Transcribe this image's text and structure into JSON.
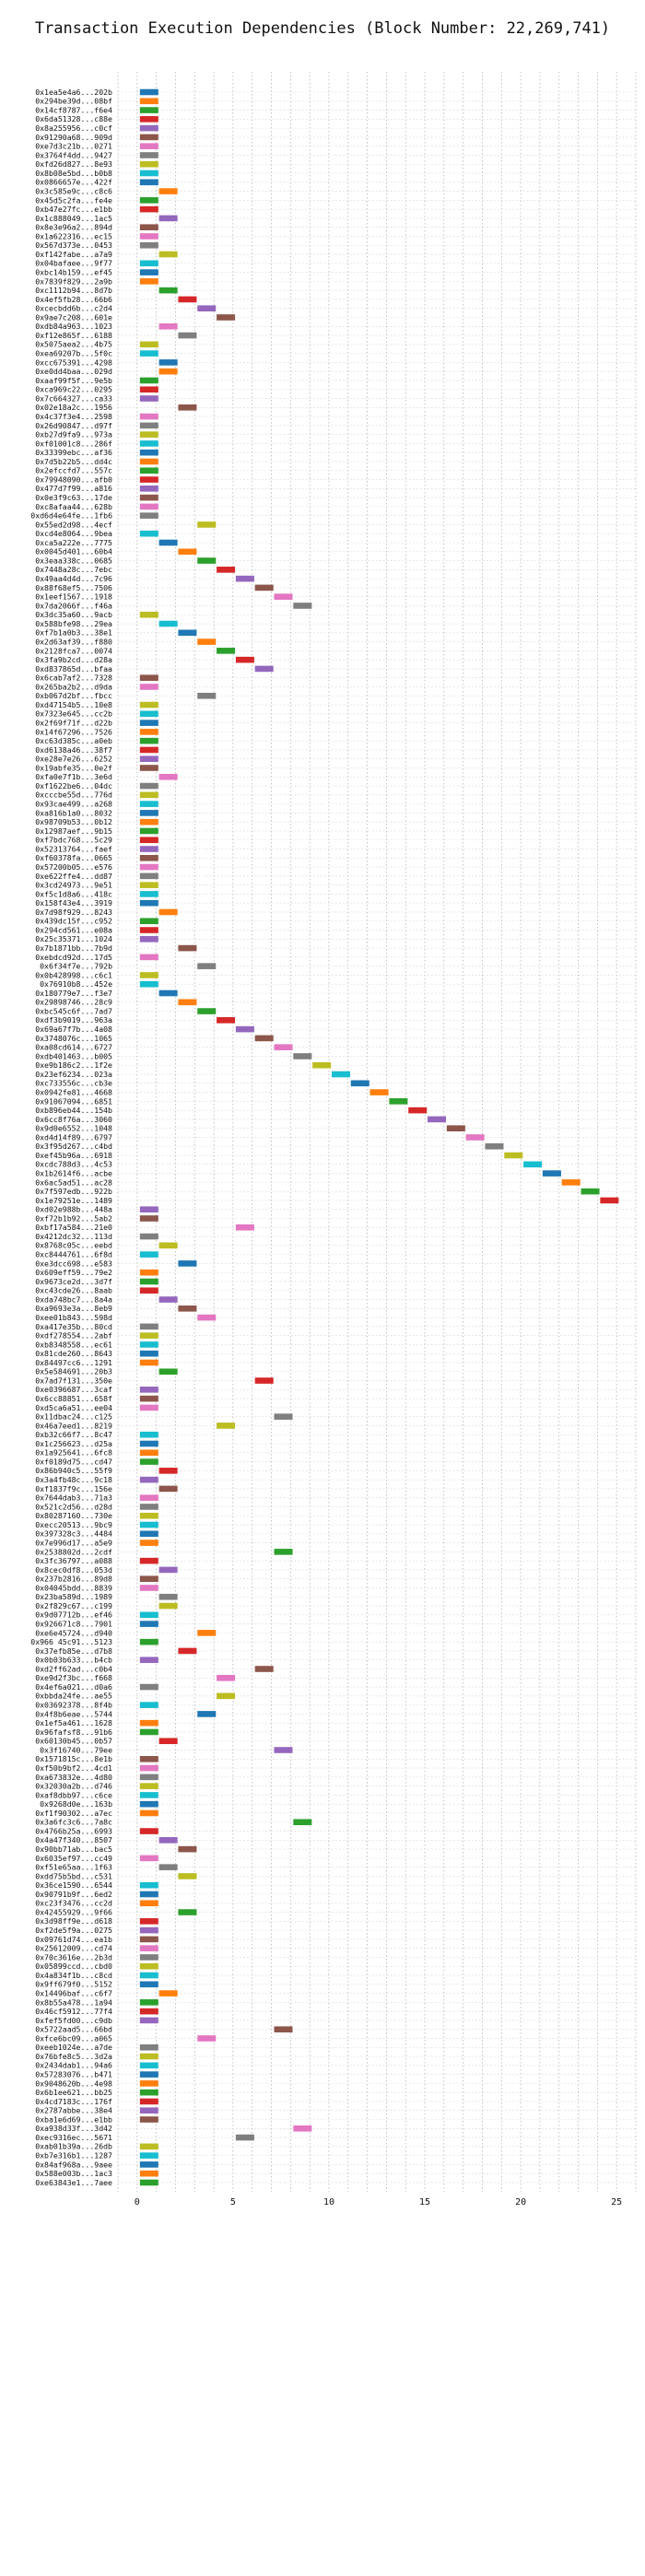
{
  "chart_data": {
    "type": "bar",
    "orientation": "horizontal-timeline",
    "title": "Transaction Execution Dependencies (Block Number: 22,269,741)",
    "xlabel": "",
    "ylabel": "",
    "xlim": [
      -1,
      26
    ],
    "xticks": [
      0,
      5,
      10,
      15,
      20,
      25
    ],
    "grid": true,
    "grid_style": "dotted",
    "palette": [
      "#1f77b4",
      "#ff7f0e",
      "#2ca02c",
      "#d62728",
      "#9467bd",
      "#8c564b",
      "#e377c2",
      "#7f7f7f",
      "#bcbd22",
      "#17becf"
    ],
    "transactions": [
      {
        "label": "0x1ea5e4a6...202b",
        "start": 0
      },
      {
        "label": "0x294be39d...08bf",
        "start": 0
      },
      {
        "label": "0x14cf8787...f6e4",
        "start": 0
      },
      {
        "label": "0x6da51328...c88e",
        "start": 0
      },
      {
        "label": "0x8a255956...c0cf",
        "start": 0
      },
      {
        "label": "0x91290a68...909d",
        "start": 0
      },
      {
        "label": "0xe7d3c21b...0271",
        "start": 0
      },
      {
        "label": "0x3764f4dd...9427",
        "start": 0
      },
      {
        "label": "0xfd26d827...8e93",
        "start": 0
      },
      {
        "label": "0x8b08e5bd...b0b8",
        "start": 0
      },
      {
        "label": "0x0866657e...422f",
        "start": 0
      },
      {
        "label": "0x3c585e9c...c8c6",
        "start": 1
      },
      {
        "label": "0x45d5c2fa...fe4e",
        "start": 0
      },
      {
        "label": "0xb47e27fc...e1bb",
        "start": 0
      },
      {
        "label": "0x1c888049...1ac5",
        "start": 1
      },
      {
        "label": "0x8e3e96a2...894d",
        "start": 0
      },
      {
        "label": "0x1a622316...ec15",
        "start": 0
      },
      {
        "label": "0x567d373e...0453",
        "start": 0
      },
      {
        "label": "0xf142fabe...a7a9",
        "start": 1
      },
      {
        "label": "0x04bafaee...9f77",
        "start": 0
      },
      {
        "label": "0xbc14b159...ef45",
        "start": 0
      },
      {
        "label": "0x7839f829...2a9b",
        "start": 0
      },
      {
        "label": "0xc1112b94...8d7b",
        "start": 1
      },
      {
        "label": "0x4ef5fb28...66b6",
        "start": 2
      },
      {
        "label": "0xcecbdd6b...c2d4",
        "start": 3
      },
      {
        "label": "0x9ae7c208...601e",
        "start": 4
      },
      {
        "label": "0xdb84a963...1023",
        "start": 1
      },
      {
        "label": "0xf12e865f...6188",
        "start": 2
      },
      {
        "label": "0x5075aea2...4b75",
        "start": 0
      },
      {
        "label": "0xea69207b...5f0c",
        "start": 0
      },
      {
        "label": "0xcc675391...4298",
        "start": 1
      },
      {
        "label": "0xe0dd4baa...029d",
        "start": 1
      },
      {
        "label": "0xaaf99f5f...9e5b",
        "start": 0
      },
      {
        "label": "0xca969c22...0295",
        "start": 0
      },
      {
        "label": "0x7c664327...ca33",
        "start": 0
      },
      {
        "label": "0x02e18a2c...1956",
        "start": 2
      },
      {
        "label": "0x4c37f3e4...2598",
        "start": 0
      },
      {
        "label": "0x26d90847...d97f",
        "start": 0
      },
      {
        "label": "0xb27d9fa9...973a",
        "start": 0
      },
      {
        "label": "0xf01001c8...286f",
        "start": 0
      },
      {
        "label": "0x33399ebc...af36",
        "start": 0
      },
      {
        "label": "0x7d5b22b5...dd4c",
        "start": 0
      },
      {
        "label": "0x2efccfd7...557c",
        "start": 0
      },
      {
        "label": "0x79948090...afb0",
        "start": 0
      },
      {
        "label": "0x477d7f99...a816",
        "start": 0
      },
      {
        "label": "0x0e3f9c63...17de",
        "start": 0
      },
      {
        "label": "0xc8afaa44...628b",
        "start": 0
      },
      {
        "label": "0xd6d4e64fe...1fb6",
        "start": 0
      },
      {
        "label": "0x55ed2d98...4ecf",
        "start": 3
      },
      {
        "label": "0xcd4e8064...9bea",
        "start": 0
      },
      {
        "label": "0xca5a222e...7775",
        "start": 1
      },
      {
        "label": "0x0045d401...60b4",
        "start": 2
      },
      {
        "label": "0x3eaa338c...0685",
        "start": 3
      },
      {
        "label": "0x7448a28c...7ebc",
        "start": 4
      },
      {
        "label": "0x49aa4d4d...7c96",
        "start": 5
      },
      {
        "label": "0x88f68ef5...7506",
        "start": 6
      },
      {
        "label": "0x1eef1567...1918",
        "start": 7
      },
      {
        "label": "0x7da2066f...f46a",
        "start": 8
      },
      {
        "label": "0x3dc35a60...9acb",
        "start": 0
      },
      {
        "label": "0x588bfe98...29ea",
        "start": 1
      },
      {
        "label": "0xf7b1a0b3...38e1",
        "start": 2
      },
      {
        "label": "0x2d63af39...f880",
        "start": 3
      },
      {
        "label": "0x2128fca7...0074",
        "start": 4
      },
      {
        "label": "0x3fa9b2cd...d28a",
        "start": 5
      },
      {
        "label": "0xd837865d...bfaa",
        "start": 6
      },
      {
        "label": "0x6cab7af2...7328",
        "start": 0
      },
      {
        "label": "0x265ba2b2...d9da",
        "start": 0
      },
      {
        "label": "0xb067d2bf...fbcc",
        "start": 3
      },
      {
        "label": "0xd47154b5...10e8",
        "start": 0
      },
      {
        "label": "0x7323e645...cc2b",
        "start": 0
      },
      {
        "label": "0x2f69f71f...d22b",
        "start": 0
      },
      {
        "label": "0x14f67296...7526",
        "start": 0
      },
      {
        "label": "0xc63d385c...a0eb",
        "start": 0
      },
      {
        "label": "0xd6138a46...38f7",
        "start": 0
      },
      {
        "label": "0xe28e7e26...6252",
        "start": 0
      },
      {
        "label": "0x19abfe35...0e2f",
        "start": 0
      },
      {
        "label": "0xfa0e7f1b...3e6d",
        "start": 1
      },
      {
        "label": "0xf1622be6...04dc",
        "start": 0
      },
      {
        "label": "0xcccbe55d...776d",
        "start": 0
      },
      {
        "label": "0x93cae499...a268",
        "start": 0
      },
      {
        "label": "0xa816b1a0...8032",
        "start": 0
      },
      {
        "label": "0x98709b53...0b12",
        "start": 0
      },
      {
        "label": "0x12987aef...9b15",
        "start": 0
      },
      {
        "label": "0xf7bdc768...5c29",
        "start": 0
      },
      {
        "label": "0x52313764...faef",
        "start": 0
      },
      {
        "label": "0xf60378fa...0665",
        "start": 0
      },
      {
        "label": "0x57200b05...e576",
        "start": 0
      },
      {
        "label": "0xe622ffe4...dd87",
        "start": 0
      },
      {
        "label": "0x3cd24973...9e51",
        "start": 0
      },
      {
        "label": "0xf5c1d8a6...418c",
        "start": 0
      },
      {
        "label": "0x158f43e4...3919",
        "start": 0
      },
      {
        "label": "0x7d98f929...8243",
        "start": 1
      },
      {
        "label": "0x439dc15f...c952",
        "start": 0
      },
      {
        "label": "0x294cd561...e08a",
        "start": 0
      },
      {
        "label": "0x25c35371...1024",
        "start": 0
      },
      {
        "label": "0x7b1871bb...7b9d",
        "start": 2
      },
      {
        "label": "0xebdcd92d...17d5",
        "start": 0
      },
      {
        "label": "0x6f34f7e...792b",
        "start": 3
      },
      {
        "label": "0x0b428998...c6c1",
        "start": 0
      },
      {
        "label": "0x76910b8...452e",
        "start": 0
      },
      {
        "label": "0x180779e7...f3e7",
        "start": 1
      },
      {
        "label": "0x29898746...28c9",
        "start": 2
      },
      {
        "label": "0xbc545c6f...7ad7",
        "start": 3
      },
      {
        "label": "0xdf3b9019...963a",
        "start": 4
      },
      {
        "label": "0x69a67f7b...4a08",
        "start": 5
      },
      {
        "label": "0x3748076c...1065",
        "start": 6
      },
      {
        "label": "0xa08cd614...6727",
        "start": 7
      },
      {
        "label": "0xdb401463...b005",
        "start": 8
      },
      {
        "label": "0xe9b186c2...1f2e",
        "start": 9
      },
      {
        "label": "0x23ef6234...023a",
        "start": 10
      },
      {
        "label": "0xc733556c...cb3e",
        "start": 11
      },
      {
        "label": "0x0942fe81...4668",
        "start": 12
      },
      {
        "label": "0x91067094...6851",
        "start": 13
      },
      {
        "label": "0xb896eb44...154b",
        "start": 14
      },
      {
        "label": "0x6cc8f76a...3060",
        "start": 15
      },
      {
        "label": "0x9d0e6552...1048",
        "start": 16
      },
      {
        "label": "0xd4d14f89...6797",
        "start": 17
      },
      {
        "label": "0x3f95d267...c4bd",
        "start": 18
      },
      {
        "label": "0xef45b96a...6918",
        "start": 19
      },
      {
        "label": "0xcdc788d3...4c53",
        "start": 20
      },
      {
        "label": "0x1b2614f6...acbe",
        "start": 21
      },
      {
        "label": "0x6ac5ad51...ac28",
        "start": 22
      },
      {
        "label": "0x7f597edb...922b",
        "start": 23
      },
      {
        "label": "0x1e79251e...1489",
        "start": 24
      },
      {
        "label": "0xd02e988b...448a",
        "start": 0
      },
      {
        "label": "0xf72b1b92...5ab2",
        "start": 0
      },
      {
        "label": "0xbf17a584...21e0",
        "start": 5
      },
      {
        "label": "0x4212dc32...113d",
        "start": 0
      },
      {
        "label": "0x8768c05c...eebd",
        "start": 1
      },
      {
        "label": "0xc8444761...6f8d",
        "start": 0
      },
      {
        "label": "0xe3dcc698...e583",
        "start": 2
      },
      {
        "label": "0x609eff59...79e2",
        "start": 0
      },
      {
        "label": "0x9673ce2d...3d7f",
        "start": 0
      },
      {
        "label": "0xc43cde26...8aab",
        "start": 0
      },
      {
        "label": "0xda748bc7...8a4a",
        "start": 1
      },
      {
        "label": "0xa9693e3a...8eb9",
        "start": 2
      },
      {
        "label": "0xee01b843...598d",
        "start": 3
      },
      {
        "label": "0xa417e35b...80cd",
        "start": 0
      },
      {
        "label": "0xdf278554...2abf",
        "start": 0
      },
      {
        "label": "0xb8348558...ec61",
        "start": 0
      },
      {
        "label": "0x81cde260...8643",
        "start": 0
      },
      {
        "label": "0x84497cc6...1291",
        "start": 0
      },
      {
        "label": "0x5e584691...20b3",
        "start": 1
      },
      {
        "label": "0x7ad7f131...350e",
        "start": 6
      },
      {
        "label": "0xe0396687...3caf",
        "start": 0
      },
      {
        "label": "0x6cc88851...658f",
        "start": 0
      },
      {
        "label": "0xd5ca6a51...ee04",
        "start": 0
      },
      {
        "label": "0x11dbac24...c125",
        "start": 7
      },
      {
        "label": "0x46a7eed1...8219",
        "start": 4
      },
      {
        "label": "0xb32c66f7...8c47",
        "start": 0
      },
      {
        "label": "0x1c256623...d25a",
        "start": 0
      },
      {
        "label": "0x1a925641...6fc8",
        "start": 0
      },
      {
        "label": "0xf0189d75...cd47",
        "start": 0
      },
      {
        "label": "0x86b940c5...55f9",
        "start": 1
      },
      {
        "label": "0x3a4fb48c...9c18",
        "start": 0
      },
      {
        "label": "0xf1837f9c...156e",
        "start": 1
      },
      {
        "label": "0x7644dab3...71a3",
        "start": 0
      },
      {
        "label": "0x521c2d56...d28d",
        "start": 0
      },
      {
        "label": "0x80287160...730e",
        "start": 0
      },
      {
        "label": "0xecc20513...9bc9",
        "start": 0
      },
      {
        "label": "0x397328c3...4484",
        "start": 0
      },
      {
        "label": "0x7e996d17...a5e9",
        "start": 0
      },
      {
        "label": "0x2538802d...2cdf",
        "start": 7
      },
      {
        "label": "0x3fc36797...a088",
        "start": 0
      },
      {
        "label": "0x8cec0df8...053d",
        "start": 1
      },
      {
        "label": "0x237b2816...89d8",
        "start": 0
      },
      {
        "label": "0x04045bdd...8839",
        "start": 0
      },
      {
        "label": "0x23ba589d...1989",
        "start": 1
      },
      {
        "label": "0x2f829c67...c199",
        "start": 1
      },
      {
        "label": "0x9d07712b...ef46",
        "start": 0
      },
      {
        "label": "0x926671c8...7901",
        "start": 0
      },
      {
        "label": "0xe6e45724...d940",
        "start": 3
      },
      {
        "label": "0x966 45c91...5123",
        "start": 0
      },
      {
        "label": "0x37efb85e...d7b8",
        "start": 2
      },
      {
        "label": "0x0b03b633...b4cb",
        "start": 0
      },
      {
        "label": "0xd2ff62ad...c0b4",
        "start": 6
      },
      {
        "label": "0xe9d2f3bc...f668",
        "start": 4
      },
      {
        "label": "0x4ef6a021...d0a6",
        "start": 0
      },
      {
        "label": "0xbbda24fe...ae55",
        "start": 4
      },
      {
        "label": "0x03692378...8f4b",
        "start": 0
      },
      {
        "label": "0x4f8b6eae...5744",
        "start": 3
      },
      {
        "label": "0x1ef5a461...1628",
        "start": 0
      },
      {
        "label": "0x96fafsf8...91b6",
        "start": 0
      },
      {
        "label": "0x60130b45...0b57",
        "start": 1
      },
      {
        "label": "0x3f16740...79ee",
        "start": 7
      },
      {
        "label": "0x1571815c...8e1b",
        "start": 0
      },
      {
        "label": "0xf50b9bf2...4cd1",
        "start": 0
      },
      {
        "label": "0xa673832e...4d80",
        "start": 0
      },
      {
        "label": "0x32030a2b...d746",
        "start": 0
      },
      {
        "label": "0xaf8dbb97...c6ce",
        "start": 0
      },
      {
        "label": "0x9268d0e...163b",
        "start": 0
      },
      {
        "label": "0xf1f90302...a7ec",
        "start": 0
      },
      {
        "label": "0x3a6fc3c6...7a8c",
        "start": 8
      },
      {
        "label": "0x4766b25a...6993",
        "start": 0
      },
      {
        "label": "0x4a47f340...8507",
        "start": 1
      },
      {
        "label": "0x90bb71ab...bac5",
        "start": 2
      },
      {
        "label": "0x6035ef97...cc49",
        "start": 0
      },
      {
        "label": "0xf51e65aa...1f63",
        "start": 1
      },
      {
        "label": "0xdd75b5bd...c531",
        "start": 2
      },
      {
        "label": "0x36ce1590...6544",
        "start": 0
      },
      {
        "label": "0x90791b9f...6ed2",
        "start": 0
      },
      {
        "label": "0xc23f3476...cc2d",
        "start": 0
      },
      {
        "label": "0x42455929...9f66",
        "start": 2
      },
      {
        "label": "0x3d98ff9e...d618",
        "start": 0
      },
      {
        "label": "0xf2de5f9a...0275",
        "start": 0
      },
      {
        "label": "0x09761d74...ea1b",
        "start": 0
      },
      {
        "label": "0x25612009...cd74",
        "start": 0
      },
      {
        "label": "0x70c3616e...2b3d",
        "start": 0
      },
      {
        "label": "0x05899ccd...cbd0",
        "start": 0
      },
      {
        "label": "0x4a834f1b...c8cd",
        "start": 0
      },
      {
        "label": "0x9ff679f0...5152",
        "start": 0
      },
      {
        "label": "0x14496baf...c6f7",
        "start": 1
      },
      {
        "label": "0x8b55a478...1a94",
        "start": 0
      },
      {
        "label": "0x46cf5912...77f4",
        "start": 0
      },
      {
        "label": "0xfef5fd00...c9db",
        "start": 0
      },
      {
        "label": "0x5722aad5...66bd",
        "start": 7
      },
      {
        "label": "0xfce6bc09...a065",
        "start": 3
      },
      {
        "label": "0xeeb1024e...a7de",
        "start": 0
      },
      {
        "label": "0x76bfe8c5...3d2a",
        "start": 0
      },
      {
        "label": "0x2434dab1...94a6",
        "start": 0
      },
      {
        "label": "0x57283076...b471",
        "start": 0
      },
      {
        "label": "0x9048620b...4e98",
        "start": 0
      },
      {
        "label": "0x6b1ee621...bb25",
        "start": 0
      },
      {
        "label": "0x4cd7183c...176f",
        "start": 0
      },
      {
        "label": "0x2787abbe...38e4",
        "start": 0
      },
      {
        "label": "0xba1e6d69...e1bb",
        "start": 0
      },
      {
        "label": "0xa938d33f...3d42",
        "start": 8
      },
      {
        "label": "0xec9316ec...5671",
        "start": 5
      },
      {
        "label": "0xab01b39a...26db",
        "start": 0
      },
      {
        "label": "0xb7e316b1...1287",
        "start": 0
      },
      {
        "label": "0x84af968a...9aee",
        "start": 0
      },
      {
        "label": "0x588e003b...1ac3",
        "start": 0
      },
      {
        "label": "0xe63843e1...7aee",
        "start": 0
      }
    ]
  }
}
